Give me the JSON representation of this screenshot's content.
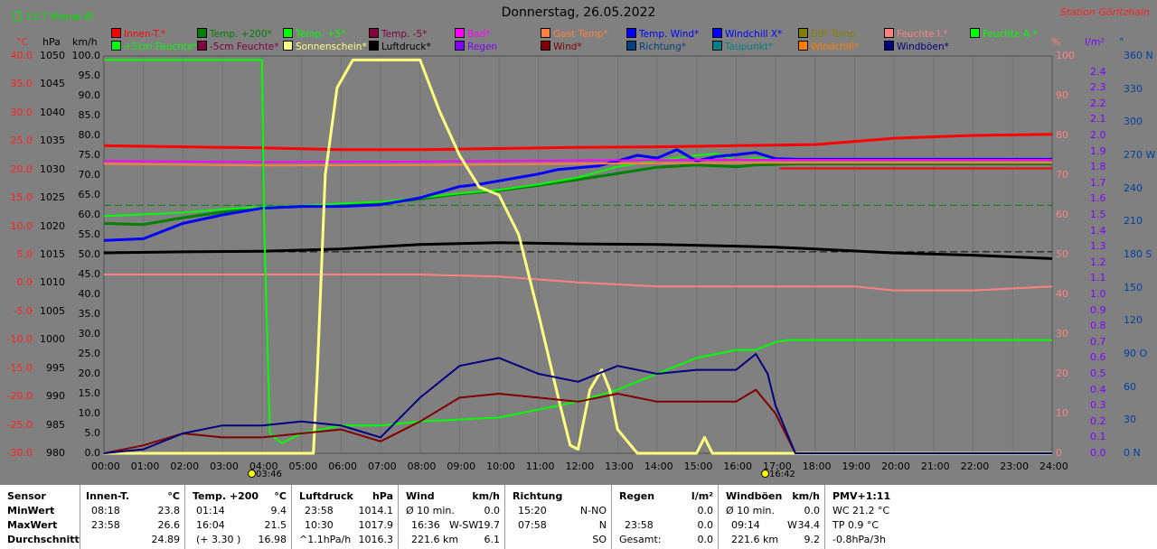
{
  "header": {
    "title": "Donnerstag, 26.05.2022",
    "station": "Station Göritzhain",
    "monat": "13.7 Monat-Ø"
  },
  "legend": [
    {
      "label": "Innen-T.*",
      "color": "#ff0000"
    },
    {
      "label": "Temp. +200*",
      "color": "#008000"
    },
    {
      "label": "Temp. +5*",
      "color": "#00ff00"
    },
    {
      "label": "Temp. -5*",
      "color": "#800040"
    },
    {
      "label": "Bad*",
      "color": "#ff00ff"
    },
    {
      "label": "Gast Temp*",
      "color": "#ff8040"
    },
    {
      "label": "Temp. Wind*",
      "color": "#0000ff"
    },
    {
      "label": "Windchill X*",
      "color": "#0000ff"
    },
    {
      "label": "Diff Temp.",
      "color": "#808000"
    },
    {
      "label": "Feuchte I.*",
      "color": "#ff8080"
    },
    {
      "label": "Feuchte A.*",
      "color": "#00ff00"
    },
    {
      "label": "+5cm Feuchte*",
      "color": "#00ff00"
    },
    {
      "label": "-5cm Feuchte*",
      "color": "#800040"
    },
    {
      "label": "Sonnenschein*",
      "color": "#ffff80"
    },
    {
      "label": "Luftdruck*",
      "color": "#000000"
    },
    {
      "label": "Regen",
      "color": "#8000ff"
    },
    {
      "label": "Wind*",
      "color": "#800000"
    },
    {
      "label": "Richtung*",
      "color": "#004080"
    },
    {
      "label": "Taupunkt*",
      "color": "#008080"
    },
    {
      "label": "Windchill*",
      "color": "#ff8000"
    },
    {
      "label": "Windböen*",
      "color": "#000080"
    }
  ],
  "axes": {
    "c_unit": "°C",
    "hpa_unit": "hPa",
    "kmh_unit": "km/h",
    "pct_unit": "%",
    "lm2_unit": "l/m²",
    "deg_unit": "°",
    "c_ticks": [
      "40.0",
      "35.0",
      "30.0",
      "25.0",
      "20.0",
      "15.0",
      "10.0",
      "5.0",
      "0.0",
      "-5.0",
      "-10.0",
      "-15.0",
      "-20.0",
      "-25.0",
      "-30.0"
    ],
    "hpa_ticks": [
      "1050",
      "1045",
      "1040",
      "1035",
      "1030",
      "1025",
      "1020",
      "1015",
      "1010",
      "1005",
      "1000",
      "995",
      "990",
      "985",
      "980"
    ],
    "kmh_ticks": [
      "100.0",
      "95.0",
      "90.0",
      "85.0",
      "80.0",
      "75.0",
      "70.0",
      "65.0",
      "60.0",
      "55.0",
      "50.0",
      "45.0",
      "40.0",
      "35.0",
      "30.0",
      "25.0",
      "20.0",
      "15.0",
      "10.0",
      "5.0",
      "0.0"
    ],
    "pct_ticks": [
      "100",
      "90",
      "80",
      "70",
      "60",
      "50",
      "40",
      "30",
      "20",
      "10",
      "0"
    ],
    "lm2_ticks": [
      "2.4",
      "2.3",
      "2.2",
      "2.1",
      "2.0",
      "1.9",
      "1.8",
      "1.7",
      "1.6",
      "1.5",
      "1.4",
      "1.3",
      "1.2",
      "1.1",
      "1.0",
      "0.9",
      "0.8",
      "0.7",
      "0.6",
      "0.5",
      "0.4",
      "0.3",
      "0.2",
      "0.1",
      "0.0"
    ],
    "deg_ticks": [
      "360 N",
      "330",
      "300",
      "270 W",
      "240",
      "210",
      "180 S",
      "150",
      "120",
      "90 O",
      "60",
      "30",
      "0 N"
    ],
    "x_ticks": [
      "00:00",
      "01:00",
      "02:00",
      "03:00",
      "04:00",
      "05:00",
      "06:00",
      "07:00",
      "08:00",
      "09:00",
      "10:00",
      "11:00",
      "12:00",
      "13:00",
      "14:00",
      "15:00",
      "16:00",
      "17:00",
      "18:00",
      "19:00",
      "20:00",
      "21:00",
      "22:00",
      "23:00",
      "24:00"
    ]
  },
  "sun_events": {
    "rise": "03:46",
    "set": "16:42"
  },
  "chart_data": {
    "type": "line",
    "title": "Donnerstag, 26.05.2022",
    "x_unit": "hours",
    "xlim": [
      0,
      24
    ],
    "c_lim": [
      -30,
      40
    ],
    "kmh_lim": [
      0,
      100
    ],
    "series": [
      {
        "name": "Innen-T.*",
        "axis": "c",
        "color": "#ff0000",
        "width": 3,
        "x": [
          0,
          2,
          4,
          6,
          8,
          10,
          12,
          14,
          16,
          17,
          18,
          20,
          22,
          24
        ],
        "y": [
          24.2,
          24.0,
          23.8,
          23.5,
          23.5,
          23.7,
          23.9,
          24.0,
          24.2,
          24.3,
          24.4,
          25.5,
          26.0,
          26.2
        ]
      },
      {
        "name": "Innen-T. flat",
        "axis": "c",
        "color": "#ff0000",
        "width": 2,
        "x": [
          17.1,
          24
        ],
        "y": [
          20.2,
          20.2
        ]
      },
      {
        "name": "Temp. +200*",
        "axis": "c",
        "color": "#008000",
        "width": 3,
        "x": [
          0,
          1,
          2,
          3,
          4,
          5,
          6,
          7,
          8,
          9,
          10,
          11,
          12,
          13,
          14,
          15,
          16,
          16.5,
          17,
          17.5,
          24
        ],
        "y": [
          10.5,
          10.3,
          11.5,
          12.5,
          13.2,
          13.5,
          13.8,
          14.0,
          14.8,
          15.7,
          16.3,
          17.2,
          18.2,
          19.3,
          20.4,
          20.8,
          20.5,
          20.8,
          20.9,
          21.0,
          21.0
        ]
      },
      {
        "name": "Temp. +5*",
        "axis": "c",
        "color": "#00ff00",
        "width": 2,
        "x": [
          0,
          2,
          3,
          4,
          5,
          6,
          7,
          8,
          9,
          10,
          11,
          12,
          13,
          14,
          15,
          15.5,
          16,
          16.5,
          17,
          17.5,
          24
        ],
        "y": [
          11.8,
          12.4,
          13.0,
          13.4,
          13.6,
          14.0,
          14.3,
          15.0,
          15.8,
          16.4,
          17.4,
          18.6,
          20.5,
          21.6,
          22.5,
          22.8,
          21.6,
          22.0,
          21.8,
          21.8,
          21.8
        ]
      },
      {
        "name": "Temp. Wind*",
        "axis": "c",
        "color": "#0000ff",
        "width": 3,
        "x": [
          0,
          1,
          2,
          3,
          4,
          5,
          6,
          7,
          8,
          8.5,
          9,
          9.5,
          10,
          10.5,
          11,
          11.5,
          12,
          12.5,
          13,
          13.5,
          14,
          14.5,
          15,
          15.5,
          16,
          16.5,
          17,
          17.5,
          24
        ],
        "y": [
          7.5,
          7.8,
          10.5,
          12.0,
          13.2,
          13.5,
          13.5,
          13.8,
          15.0,
          16.0,
          17.0,
          17.4,
          18.0,
          18.6,
          19.2,
          20.0,
          20.3,
          20.6,
          21.5,
          22.5,
          22.0,
          23.5,
          21.5,
          22.3,
          22.6,
          23.0,
          21.9,
          21.8,
          21.8
        ]
      },
      {
        "name": "Bad*",
        "axis": "c",
        "color": "#ff00ff",
        "width": 2,
        "x": [
          0,
          4,
          8,
          12,
          16,
          17,
          24
        ],
        "y": [
          21.5,
          21.3,
          21.4,
          21.6,
          21.7,
          21.7,
          21.7
        ]
      },
      {
        "name": "Gast Temp*",
        "axis": "c",
        "color": "#ff8040",
        "width": 2,
        "x": [
          0,
          4,
          8,
          12,
          16,
          17,
          24
        ],
        "y": [
          21.0,
          20.7,
          20.8,
          21.0,
          21.2,
          21.2,
          21.2
        ]
      },
      {
        "name": "Luftdruck*",
        "axis": "hpa",
        "color": "#000000",
        "width": 3,
        "hpa_lim": [
          980,
          1050
        ],
        "x": [
          0,
          2,
          4,
          6,
          8,
          10,
          12,
          14,
          16,
          17,
          18,
          20,
          22,
          24
        ],
        "y": [
          1015.3,
          1015.5,
          1015.6,
          1016.0,
          1016.8,
          1017.1,
          1016.9,
          1016.8,
          1016.5,
          1016.3,
          1016.0,
          1015.3,
          1014.9,
          1014.3
        ]
      },
      {
        "name": "Feuchte I.*",
        "axis": "pct",
        "color": "#ff8080",
        "width": 2,
        "x": [
          0,
          4,
          8,
          10,
          12,
          14,
          16,
          18,
          19,
          20,
          22,
          24
        ],
        "y": [
          45,
          45,
          45,
          44.5,
          43,
          42,
          42,
          42,
          42,
          41,
          41,
          42
        ]
      },
      {
        "name": "Feuchte A.*",
        "axis": "pct",
        "color": "#00ff00",
        "width": 2,
        "x": [
          0,
          4.0,
          4.05,
          4.2,
          4.5,
          5,
          6,
          7,
          8,
          10,
          12,
          13,
          14,
          15,
          16,
          16.5,
          17,
          17.3,
          24
        ],
        "y": [
          99,
          99,
          60,
          5,
          2.5,
          5,
          7,
          7,
          8,
          9,
          13,
          16,
          20,
          24,
          26,
          26,
          28,
          28.5,
          28.5
        ]
      },
      {
        "name": "Sonnenschein*",
        "axis": "pct",
        "color": "#ffff80",
        "width": 3,
        "x": [
          0,
          5.3,
          5.4,
          5.6,
          5.9,
          6.3,
          7,
          8,
          8.5,
          9,
          9.5,
          10,
          10.5,
          11,
          11.5,
          11.8,
          12,
          12.3,
          12.6,
          12.8,
          13,
          13.5,
          15,
          15.2,
          15.4,
          17,
          24
        ],
        "y": [
          0,
          0,
          20,
          70,
          92,
          99,
          99,
          99,
          86,
          75,
          67,
          65,
          55,
          35,
          14,
          2,
          1,
          16,
          21,
          16,
          6,
          0,
          0,
          4,
          0,
          0,
          0
        ]
      },
      {
        "name": "Wind*",
        "axis": "kmh",
        "color": "#800000",
        "width": 2,
        "x": [
          0,
          1,
          2,
          3,
          4,
          5,
          6,
          7,
          8,
          9,
          10,
          11,
          12,
          13,
          14,
          15,
          16,
          16.5,
          17,
          17.5,
          18,
          24
        ],
        "y": [
          0,
          2,
          5,
          4,
          4,
          5,
          6,
          3,
          8,
          14,
          15,
          14,
          13,
          15,
          13,
          13,
          13,
          16,
          10,
          0,
          0,
          0
        ]
      },
      {
        "name": "Windböen*",
        "axis": "kmh",
        "color": "#000080",
        "width": 2,
        "x": [
          0,
          1,
          2,
          3,
          4,
          5,
          6,
          7,
          8,
          9,
          10,
          11,
          12,
          13,
          14,
          15,
          16,
          16.5,
          16.8,
          17,
          17.5,
          18,
          24
        ],
        "y": [
          0,
          1,
          5,
          7,
          7,
          8,
          7,
          4,
          14,
          22,
          24,
          20,
          18,
          22,
          20,
          21,
          21,
          25,
          20,
          12,
          0,
          0,
          0
        ]
      }
    ],
    "legend_position": "top"
  },
  "footer": {
    "sensor": {
      "h": "Sensor",
      "min": "MinWert",
      "max": "MaxWert",
      "avg": "Durchschnitt"
    },
    "innen": {
      "h": "Innen-T.",
      "u": "°C",
      "min_t": "08:18",
      "min": "23.8",
      "max_t": "23:58",
      "max": "26.6",
      "avg": "24.89"
    },
    "temp": {
      "h": "Temp. +200",
      "u": "°C",
      "min_t": "01:14",
      "min": "9.4",
      "max_t": "16:04",
      "max": "21.5",
      "extra": "(+ 3.30 )",
      "avg": "16.98"
    },
    "druck": {
      "h": "Luftdruck",
      "u": "hPa",
      "min_t": "23:58",
      "min": "1014.1",
      "max_t": "10:30",
      "max": "1017.9",
      "extra": "^1.1hPa/h",
      "avg": "1016.3"
    },
    "wind": {
      "h": "Wind",
      "u": "km/h",
      "r1": "Ø 10 min.",
      "r1v": "0.0",
      "r2": "16:36",
      "r2d": "W-SW",
      "r2v": "19.7",
      "r3": "221.6 km",
      "r3v": "6.1"
    },
    "richtung": {
      "h": "Richtung",
      "r1t": "15:20",
      "r1v": "N-NO",
      "r2t": "07:58",
      "r2v": "N",
      "r3v": "SO"
    },
    "regen": {
      "h": "Regen",
      "u": "l/m²",
      "r1v": "0.0",
      "r2t": "23:58",
      "r2v": "0.0",
      "r3": "Gesamt:",
      "r3v": "0.0"
    },
    "boen": {
      "h": "Windböen",
      "u": "km/h",
      "r1": "Ø 10 min.",
      "r1v": "0.0",
      "r2": "09:14",
      "r2d": "W",
      "r2v": "34.4",
      "r3": "221.6 km",
      "r3v": "9.2"
    },
    "pmv": {
      "h": "PMV+1:11",
      "r1": "WC 21.2 °C",
      "r2": "TP 0.9 °C",
      "r3": "-0.8hPa/3h"
    }
  }
}
